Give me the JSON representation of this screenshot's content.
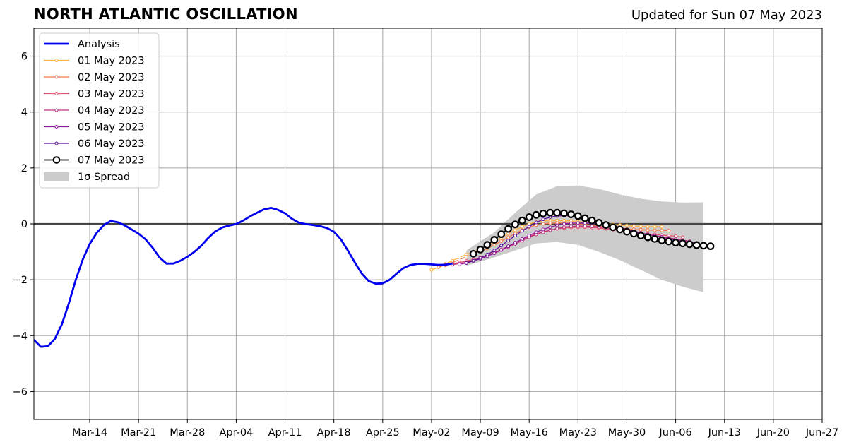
{
  "header": {
    "title": "NORTH ATLANTIC OSCILLATION",
    "subtitle": "Updated for Sun 07 May 2023"
  },
  "chart_data": {
    "type": "line",
    "title": "NORTH ATLANTIC OSCILLATION",
    "subtitle": "Updated for Sun 07 May 2023",
    "xlabel": "",
    "ylabel": "",
    "xlim": [
      "2023-03-06",
      "2023-06-27"
    ],
    "ylim": [
      -7,
      7
    ],
    "grid": true,
    "legend_position": "top-left",
    "x_ticks": [
      "2023-03-14",
      "2023-03-21",
      "2023-03-28",
      "2023-04-04",
      "2023-04-11",
      "2023-04-18",
      "2023-04-25",
      "2023-05-02",
      "2023-05-09",
      "2023-05-16",
      "2023-05-23",
      "2023-05-30",
      "2023-06-06",
      "2023-06-13",
      "2023-06-20",
      "2023-06-27"
    ],
    "x_tick_labels": [
      "Mar-14",
      "Mar-21",
      "Mar-28",
      "Apr-04",
      "Apr-11",
      "Apr-18",
      "Apr-25",
      "May-02",
      "May-09",
      "May-16",
      "May-23",
      "May-30",
      "Jun-06",
      "Jun-13",
      "Jun-20",
      "Jun-27"
    ],
    "y_ticks": [
      -6,
      -4,
      -2,
      0,
      2,
      4,
      6
    ],
    "y_tick_labels": [
      "−6",
      "−4",
      "−2",
      "0",
      "2",
      "4",
      "6"
    ],
    "analysis": {
      "name": "Analysis",
      "color": "#0000ee",
      "x": [
        "2023-03-06",
        "2023-03-07",
        "2023-03-08",
        "2023-03-09",
        "2023-03-10",
        "2023-03-11",
        "2023-03-12",
        "2023-03-13",
        "2023-03-14",
        "2023-03-15",
        "2023-03-16",
        "2023-03-17",
        "2023-03-18",
        "2023-03-19",
        "2023-03-20",
        "2023-03-21",
        "2023-03-22",
        "2023-03-23",
        "2023-03-24",
        "2023-03-25",
        "2023-03-26",
        "2023-03-27",
        "2023-03-28",
        "2023-03-29",
        "2023-03-30",
        "2023-03-31",
        "2023-04-01",
        "2023-04-02",
        "2023-04-03",
        "2023-04-04",
        "2023-04-05",
        "2023-04-06",
        "2023-04-07",
        "2023-04-08",
        "2023-04-09",
        "2023-04-10",
        "2023-04-11",
        "2023-04-12",
        "2023-04-13",
        "2023-04-14",
        "2023-04-15",
        "2023-04-16",
        "2023-04-17",
        "2023-04-18",
        "2023-04-19",
        "2023-04-20",
        "2023-04-21",
        "2023-04-22",
        "2023-04-23",
        "2023-04-24",
        "2023-04-25",
        "2023-04-26",
        "2023-04-27",
        "2023-04-28",
        "2023-04-29",
        "2023-04-30",
        "2023-05-01",
        "2023-05-02",
        "2023-05-03",
        "2023-05-04",
        "2023-05-05"
      ],
      "values": [
        -4.15,
        -4.4,
        -4.38,
        -4.12,
        -3.6,
        -2.85,
        -2.0,
        -1.28,
        -0.72,
        -0.32,
        -0.05,
        0.1,
        0.06,
        -0.05,
        -0.2,
        -0.35,
        -0.55,
        -0.85,
        -1.2,
        -1.42,
        -1.42,
        -1.32,
        -1.18,
        -1.0,
        -0.78,
        -0.5,
        -0.27,
        -0.13,
        -0.06,
        -0.01,
        0.12,
        0.27,
        0.4,
        0.52,
        0.57,
        0.5,
        0.38,
        0.18,
        0.04,
        -0.01,
        -0.04,
        -0.08,
        -0.15,
        -0.28,
        -0.55,
        -0.95,
        -1.38,
        -1.78,
        -2.05,
        -2.14,
        -2.13,
        -2.0,
        -1.78,
        -1.58,
        -1.47,
        -1.43,
        -1.43,
        -1.45,
        -1.47,
        -1.46,
        -1.42
      ]
    },
    "spread": {
      "name": "1σ Spread",
      "color": "#cccccc",
      "x": [
        "2023-05-07",
        "2023-05-11",
        "2023-05-14",
        "2023-05-17",
        "2023-05-20",
        "2023-05-23",
        "2023-05-26",
        "2023-05-29",
        "2023-06-01",
        "2023-06-04",
        "2023-06-07",
        "2023-06-10"
      ],
      "upper": [
        -0.95,
        -0.3,
        0.4,
        1.05,
        1.35,
        1.37,
        1.25,
        1.05,
        0.9,
        0.8,
        0.76,
        0.77
      ],
      "lower": [
        -1.5,
        -1.2,
        -0.95,
        -0.7,
        -0.65,
        -0.75,
        -1.0,
        -1.3,
        -1.65,
        -2.0,
        -2.25,
        -2.45
      ]
    },
    "series": [
      {
        "name": "01 May 2023",
        "color": "#fcb040",
        "x_start": "2023-05-02",
        "values": [
          -1.65,
          -1.55,
          -1.43,
          -1.32,
          -1.2,
          -1.1,
          -1.0,
          -0.9,
          -0.78,
          -0.65,
          -0.5,
          -0.35,
          -0.22,
          -0.1,
          0.0,
          0.06,
          0.1,
          0.12,
          0.12,
          0.11,
          0.1,
          0.08,
          0.06,
          0.04,
          0.02,
          0.0,
          -0.02,
          -0.04,
          -0.06,
          -0.08,
          -0.09,
          -0.1,
          -0.1,
          -0.1
        ]
      },
      {
        "name": "02 May 2023",
        "color": "#f4794a",
        "x_start": "2023-05-03",
        "values": [
          -1.55,
          -1.47,
          -1.38,
          -1.28,
          -1.18,
          -1.08,
          -0.98,
          -0.88,
          -0.75,
          -0.62,
          -0.48,
          -0.35,
          -0.22,
          -0.12,
          -0.04,
          0.0,
          0.02,
          0.03,
          0.03,
          0.02,
          0.0,
          -0.02,
          -0.05,
          -0.08,
          -0.1,
          -0.12,
          -0.15,
          -0.18,
          -0.2,
          -0.21,
          -0.22,
          -0.23,
          -0.23,
          -0.24
        ]
      },
      {
        "name": "03 May 2023",
        "color": "#e2526b",
        "x_start": "2023-05-04",
        "values": [
          -1.48,
          -1.43,
          -1.38,
          -1.33,
          -1.27,
          -1.2,
          -1.12,
          -1.02,
          -0.92,
          -0.8,
          -0.68,
          -0.56,
          -0.45,
          -0.36,
          -0.28,
          -0.22,
          -0.18,
          -0.15,
          -0.13,
          -0.12,
          -0.12,
          -0.13,
          -0.15,
          -0.18,
          -0.21,
          -0.25,
          -0.28,
          -0.31,
          -0.34,
          -0.36,
          -0.38,
          -0.4,
          -0.42,
          -0.44,
          -0.48
        ]
      },
      {
        "name": "04 May 2023",
        "color": "#b8307e",
        "x_start": "2023-05-05",
        "values": [
          -1.46,
          -1.42,
          -1.37,
          -1.31,
          -1.24,
          -1.15,
          -1.05,
          -0.94,
          -0.83,
          -0.72,
          -0.6,
          -0.48,
          -0.38,
          -0.3,
          -0.23,
          -0.17,
          -0.12,
          -0.09,
          -0.08,
          -0.08,
          -0.09,
          -0.11,
          -0.14,
          -0.18,
          -0.22,
          -0.26,
          -0.3,
          -0.34,
          -0.38,
          -0.42,
          -0.46,
          -0.5,
          -0.54,
          -0.58,
          -0.62
        ]
      },
      {
        "name": "05 May 2023",
        "color": "#8a1b9c",
        "x_start": "2023-05-06",
        "values": [
          -1.45,
          -1.4,
          -1.33,
          -1.25,
          -1.16,
          -1.05,
          -0.93,
          -0.8,
          -0.67,
          -0.54,
          -0.42,
          -0.3,
          -0.2,
          -0.12,
          -0.05,
          0.0,
          0.02,
          0.03,
          0.03,
          0.02,
          0.0,
          -0.04,
          -0.09,
          -0.14,
          -0.2,
          -0.26,
          -0.32,
          -0.38,
          -0.43,
          -0.48,
          -0.53,
          -0.58,
          -0.62,
          -0.65,
          -0.68
        ]
      },
      {
        "name": "06 May 2023",
        "color": "#5a0f9a",
        "x_start": "2023-05-07",
        "values": [
          -1.4,
          -1.32,
          -1.22,
          -1.1,
          -0.95,
          -0.78,
          -0.6,
          -0.42,
          -0.25,
          -0.1,
          0.05,
          0.16,
          0.24,
          0.28,
          0.29,
          0.28,
          0.25,
          0.2,
          0.14,
          0.07,
          0.0,
          -0.08,
          -0.16,
          -0.24,
          -0.32,
          -0.4,
          -0.47,
          -0.54,
          -0.6,
          -0.65,
          -0.7,
          -0.74,
          -0.77,
          -0.8,
          -0.82
        ]
      },
      {
        "name": "07 May 2023",
        "color": "#000000",
        "x_start": "2023-05-08",
        "values": [
          -1.07,
          -0.92,
          -0.75,
          -0.57,
          -0.37,
          -0.18,
          -0.02,
          0.12,
          0.24,
          0.32,
          0.37,
          0.4,
          0.4,
          0.38,
          0.34,
          0.28,
          0.2,
          0.12,
          0.04,
          -0.04,
          -0.12,
          -0.2,
          -0.28,
          -0.35,
          -0.42,
          -0.48,
          -0.54,
          -0.59,
          -0.63,
          -0.67,
          -0.7,
          -0.73,
          -0.76,
          -0.78,
          -0.8
        ]
      }
    ]
  }
}
